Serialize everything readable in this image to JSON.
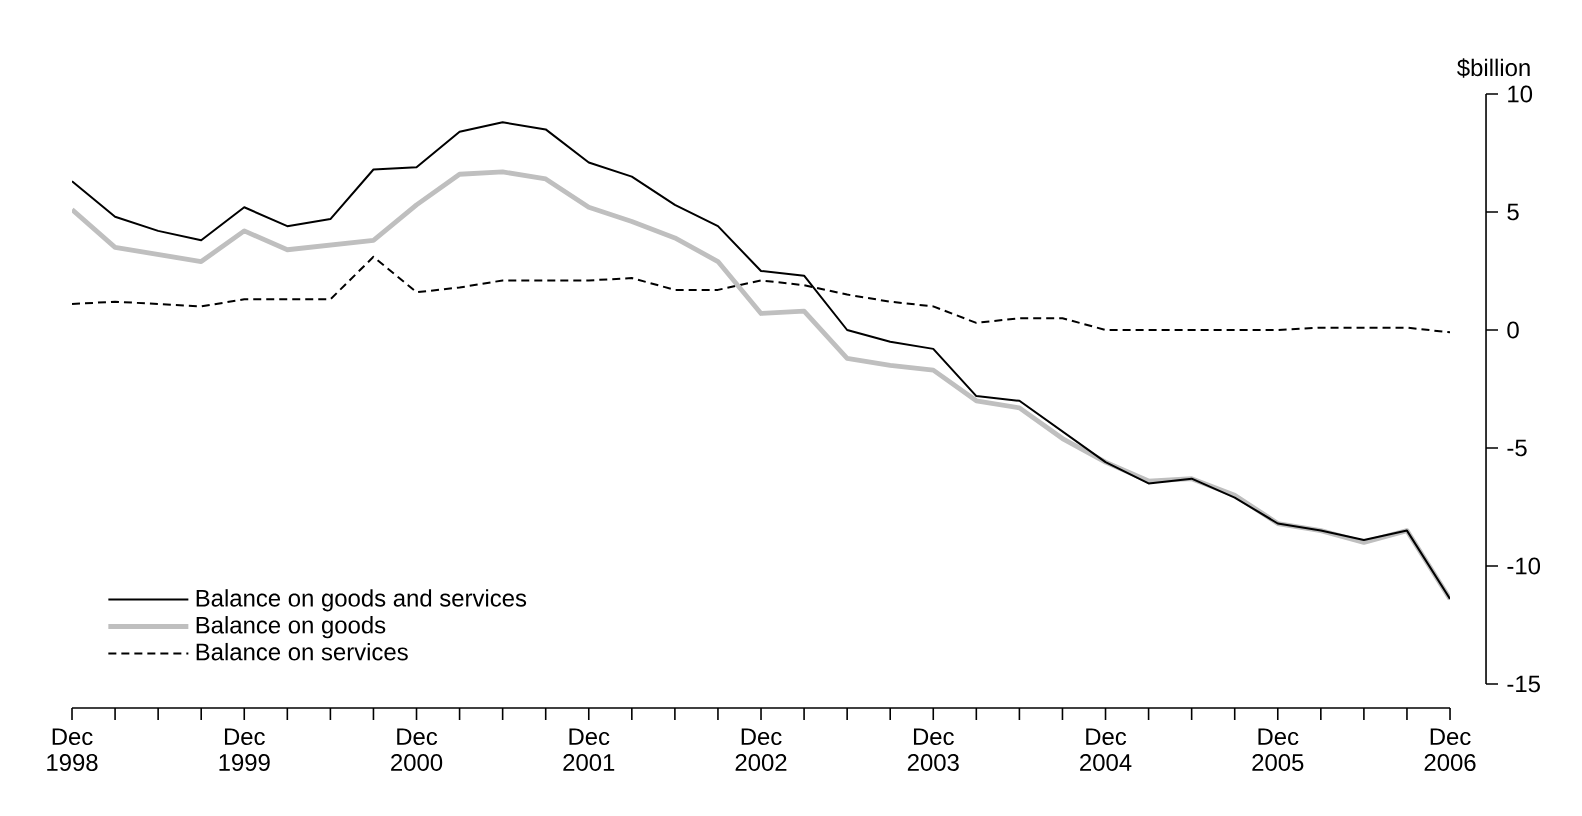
{
  "chart_data": {
    "type": "line",
    "ylabel": "$billion",
    "categories": [
      "Dec 1998",
      null,
      null,
      null,
      "Dec 1999",
      null,
      null,
      null,
      "Dec 2000",
      null,
      null,
      null,
      "Dec 2001",
      null,
      null,
      null,
      "Dec 2002",
      null,
      null,
      null,
      "Dec 2003",
      null,
      null,
      null,
      "Dec 2004",
      null,
      null,
      null,
      "Dec 2005",
      null,
      null,
      null,
      "Dec 2006"
    ],
    "series": [
      {
        "name": "Balance on goods and services",
        "color": "#000000",
        "line_style": "solid",
        "values": [
          6.3,
          4.8,
          4.2,
          3.8,
          5.2,
          4.4,
          4.7,
          6.8,
          6.9,
          8.4,
          8.8,
          8.5,
          7.1,
          6.5,
          5.3,
          4.4,
          2.5,
          2.3,
          0.0,
          -0.5,
          -0.8,
          -2.8,
          -3.0,
          -4.3,
          -5.6,
          -6.5,
          -6.3,
          -7.1,
          -8.2,
          -8.5,
          -8.9,
          -8.5,
          -11.4
        ]
      },
      {
        "name": "Balance on goods",
        "color": "#bfbfbf",
        "line_style": "solid",
        "values": [
          5.1,
          3.5,
          3.2,
          2.9,
          4.2,
          3.4,
          3.6,
          3.8,
          5.3,
          6.6,
          6.7,
          6.4,
          5.2,
          4.6,
          3.9,
          2.9,
          0.7,
          0.8,
          -1.2,
          -1.5,
          -1.7,
          -3.0,
          -3.3,
          -4.6,
          -5.6,
          -6.4,
          -6.3,
          -7.0,
          -8.2,
          -8.5,
          -9.0,
          -8.5,
          -11.4
        ]
      },
      {
        "name": "Balance on services",
        "color": "#000000",
        "line_style": "dashed",
        "values": [
          1.1,
          1.2,
          1.1,
          1.0,
          1.3,
          1.3,
          1.3,
          3.1,
          1.6,
          1.8,
          2.1,
          2.1,
          2.1,
          2.2,
          1.7,
          1.7,
          2.1,
          1.9,
          1.5,
          1.2,
          1.0,
          0.3,
          0.5,
          0.5,
          0.0,
          0.0,
          0.0,
          0.0,
          0.0,
          0.1,
          0.1,
          0.1,
          -0.1
        ]
      }
    ],
    "ylim": [
      -15,
      10
    ],
    "yticks": [
      -15,
      -10,
      -5,
      0,
      5,
      10
    ],
    "grid": false,
    "legend": "bottom left",
    "marker": "none"
  }
}
